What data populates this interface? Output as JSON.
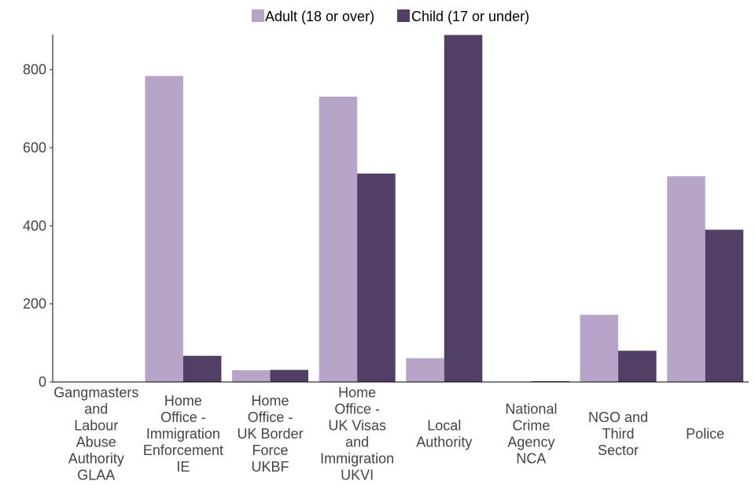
{
  "chart_data": {
    "type": "bar",
    "title": "",
    "xlabel": "",
    "ylabel": "",
    "ylim": [
      0,
      890
    ],
    "yticks": [
      0,
      200,
      400,
      600,
      800
    ],
    "grid": false,
    "legend_position": "top",
    "categories": [
      [
        "Gangmasters",
        "and",
        "Labour",
        "Abuse",
        "Authority",
        "GLAA"
      ],
      [
        "Home",
        "Office -",
        "Immigration",
        "Enforcement",
        "IE"
      ],
      [
        "Home",
        "Office -",
        "UK Border",
        "Force",
        "UKBF"
      ],
      [
        "Home",
        "Office -",
        "UK Visas",
        "and",
        "Immigration",
        "UKVI"
      ],
      [
        "Local",
        "Authority"
      ],
      [
        "National",
        "Crime",
        "Agency",
        "NCA"
      ],
      [
        "NGO and",
        "Third",
        "Sector"
      ],
      [
        "Police"
      ]
    ],
    "series": [
      {
        "name": "Adult (18 or over)",
        "color": "#b6a5c9",
        "values": [
          1,
          784,
          30,
          731,
          61,
          1,
          172,
          527
        ]
      },
      {
        "name": "Child (17 or under)",
        "color": "#513f66",
        "values": [
          0,
          67,
          31,
          534,
          889,
          2,
          80,
          390
        ]
      }
    ]
  }
}
